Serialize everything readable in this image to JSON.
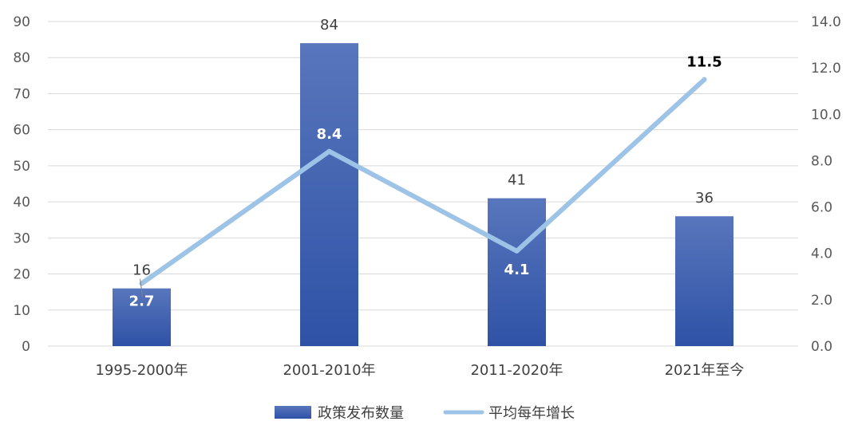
{
  "chart_data": {
    "type": "bar",
    "categories": [
      "1995-2000年",
      "2001-2010年",
      "2011-2020年",
      "2021年至今"
    ],
    "series": [
      {
        "name": "政策发布数量",
        "type": "bar",
        "axis": "left",
        "values": [
          16,
          84,
          41,
          36
        ],
        "color": "#3355A8"
      },
      {
        "name": "平均每年增长",
        "type": "line",
        "axis": "right",
        "values": [
          2.7,
          8.4,
          4.1,
          11.5
        ],
        "color": "#9DC3E6"
      }
    ],
    "y_left": {
      "min": 0,
      "max": 90,
      "step": 10,
      "ticks": [
        "0",
        "10",
        "20",
        "30",
        "40",
        "50",
        "60",
        "70",
        "80",
        "90"
      ]
    },
    "y_right": {
      "min": 0,
      "max": 14,
      "step": 2,
      "ticks": [
        "0.0",
        "2.0",
        "4.0",
        "6.0",
        "8.0",
        "10.0",
        "12.0",
        "14.0"
      ]
    },
    "bar_labels": [
      "16",
      "84",
      "41",
      "36"
    ],
    "line_labels": [
      "2.7",
      "8.4",
      "4.1",
      "11.5"
    ],
    "grid": true,
    "legend_position": "bottom",
    "colors": {
      "bar_top": "#5876BC",
      "bar_bottom": "#2F52A6",
      "line": "#9DC3E6",
      "grid": "#D9D9D9"
    }
  }
}
